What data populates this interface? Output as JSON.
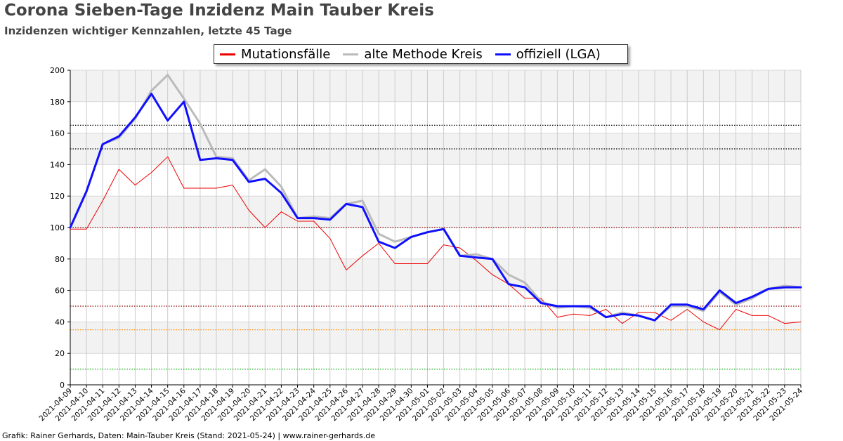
{
  "title": "Corona Sieben-Tage Inzidenz Main Tauber Kreis",
  "subtitle": "Inzidenzen wichtiger Kennzahlen, letzte 45 Tage",
  "footer": "Grafik: Rainer Gerhards, Daten: Main-Tauber Kreis (Stand: 2021-05-24) | www.rainer-gerhards.de",
  "chart_data": {
    "type": "line",
    "ylim": [
      0,
      200
    ],
    "yticks": [
      0,
      20,
      40,
      60,
      80,
      100,
      120,
      140,
      160,
      180,
      200
    ],
    "grid": true,
    "legend_position": "top-center",
    "x": [
      "2021-04-09",
      "2021-04-10",
      "2021-04-11",
      "2021-04-12",
      "2021-04-13",
      "2021-04-14",
      "2021-04-15",
      "2021-04-16",
      "2021-04-17",
      "2021-04-18",
      "2021-04-19",
      "2021-04-20",
      "2021-04-21",
      "2021-04-22",
      "2021-04-23",
      "2021-04-24",
      "2021-04-25",
      "2021-04-26",
      "2021-04-27",
      "2021-04-28",
      "2021-04-29",
      "2021-04-30",
      "2021-05-01",
      "2021-05-02",
      "2021-05-03",
      "2021-05-04",
      "2021-05-05",
      "2021-05-06",
      "2021-05-07",
      "2021-05-08",
      "2021-05-09",
      "2021-05-10",
      "2021-05-11",
      "2021-05-12",
      "2021-05-13",
      "2021-05-14",
      "2021-05-15",
      "2021-05-16",
      "2021-05-17",
      "2021-05-18",
      "2021-05-19",
      "2021-05-20",
      "2021-05-21",
      "2021-05-22",
      "2021-05-23",
      "2021-05-24"
    ],
    "series": [
      {
        "name": "Mutationsfälle",
        "color": "#ee0000",
        "width": 1,
        "values": [
          99,
          99,
          117,
          137,
          127,
          135,
          145,
          125,
          125,
          125,
          127,
          111,
          100,
          110,
          104,
          104,
          93,
          73,
          82,
          90,
          77,
          77,
          77,
          89,
          87,
          79,
          70,
          64,
          55,
          55,
          43,
          45,
          44,
          48,
          39,
          46,
          46,
          41,
          48,
          40,
          35,
          48,
          44,
          44,
          39,
          40
        ]
      },
      {
        "name": "alte Methode Kreis",
        "color": "#bbbbbb",
        "width": 3,
        "values": [
          100,
          123,
          153,
          157,
          169,
          187,
          197,
          182,
          166,
          145,
          144,
          130,
          137,
          126,
          106,
          107,
          106,
          115,
          117,
          96,
          91,
          94,
          97,
          99,
          82,
          83,
          80,
          70,
          65,
          53,
          49,
          50,
          49,
          43,
          46,
          44,
          41,
          50,
          50,
          47,
          59,
          51,
          55,
          61,
          63,
          62
        ]
      },
      {
        "name": "offiziell (LGA)",
        "color": "#1010ff",
        "width": 3,
        "values": [
          100,
          123,
          153,
          158,
          170,
          185,
          168,
          180,
          143,
          144,
          143,
          129,
          131,
          122,
          106,
          106,
          105,
          115,
          113,
          91,
          87,
          94,
          97,
          99,
          82,
          81,
          80,
          64,
          62,
          52,
          50,
          50,
          50,
          43,
          45,
          44,
          41,
          51,
          51,
          48,
          60,
          52,
          56,
          61,
          62,
          62
        ]
      }
    ],
    "reference_lines": [
      {
        "y": 165,
        "color": "#000000"
      },
      {
        "y": 150,
        "color": "#000000"
      },
      {
        "y": 100,
        "color": "#8b0000"
      },
      {
        "y": 50,
        "color": "#8b0000"
      },
      {
        "y": 35,
        "color": "#ff8c00"
      },
      {
        "y": 10,
        "color": "#00aa00"
      }
    ]
  }
}
